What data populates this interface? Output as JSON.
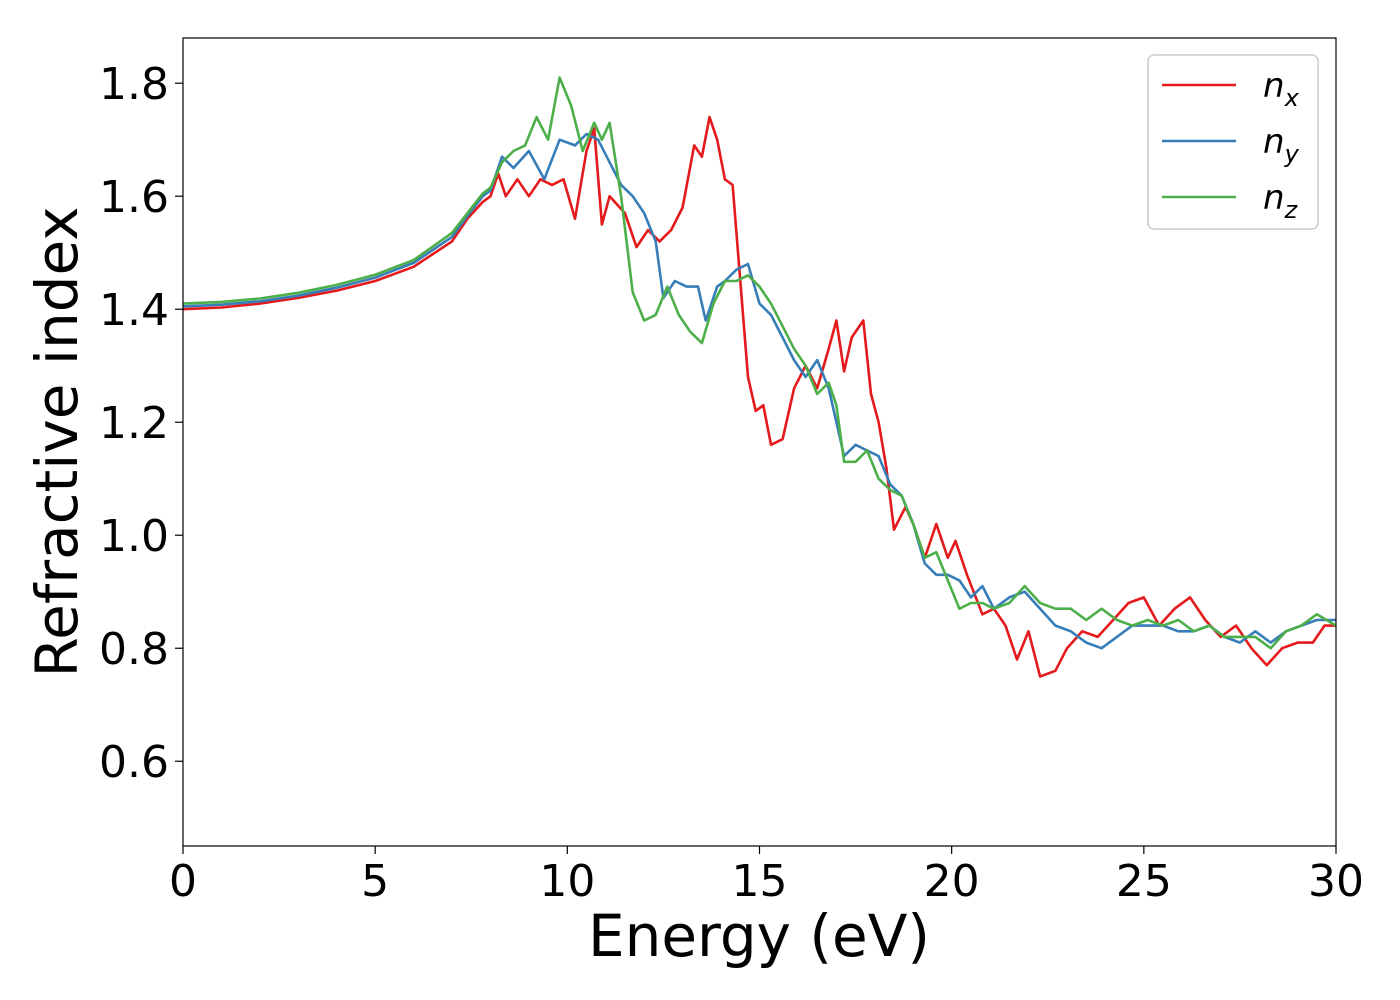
{
  "chart_data": {
    "type": "line",
    "title": "",
    "xlabel": "Energy (eV)",
    "ylabel": "Refractive index",
    "xlim": [
      0,
      30
    ],
    "ylim": [
      0.45,
      1.88
    ],
    "xticks": [
      0,
      5,
      10,
      15,
      20,
      25,
      30
    ],
    "xtick_labels": [
      "0",
      "5",
      "10",
      "15",
      "20",
      "25",
      "30"
    ],
    "yticks": [
      0.6,
      0.8,
      1.0,
      1.2,
      1.4,
      1.6,
      1.8
    ],
    "ytick_labels": [
      "0.6",
      "0.8",
      "1.0",
      "1.2",
      "1.4",
      "1.6",
      "1.8"
    ],
    "grid": false,
    "legend_position": "top-right",
    "series": [
      {
        "name": "n",
        "subscript": "x",
        "color": "#e41a1c",
        "points": [
          [
            0,
            1.4
          ],
          [
            1,
            1.403
          ],
          [
            2,
            1.41
          ],
          [
            3,
            1.42
          ],
          [
            4,
            1.433
          ],
          [
            5,
            1.45
          ],
          [
            6,
            1.475
          ],
          [
            7,
            1.52
          ],
          [
            7.4,
            1.56
          ],
          [
            7.8,
            1.59
          ],
          [
            8.0,
            1.6
          ],
          [
            8.2,
            1.64
          ],
          [
            8.4,
            1.6
          ],
          [
            8.7,
            1.63
          ],
          [
            9.0,
            1.6
          ],
          [
            9.3,
            1.63
          ],
          [
            9.6,
            1.62
          ],
          [
            9.9,
            1.63
          ],
          [
            10.2,
            1.56
          ],
          [
            10.5,
            1.68
          ],
          [
            10.7,
            1.72
          ],
          [
            10.9,
            1.55
          ],
          [
            11.1,
            1.6
          ],
          [
            11.5,
            1.57
          ],
          [
            11.8,
            1.51
          ],
          [
            12.1,
            1.54
          ],
          [
            12.4,
            1.52
          ],
          [
            12.7,
            1.54
          ],
          [
            13.0,
            1.58
          ],
          [
            13.3,
            1.69
          ],
          [
            13.5,
            1.67
          ],
          [
            13.7,
            1.74
          ],
          [
            13.9,
            1.7
          ],
          [
            14.1,
            1.63
          ],
          [
            14.3,
            1.62
          ],
          [
            14.5,
            1.45
          ],
          [
            14.7,
            1.28
          ],
          [
            14.9,
            1.22
          ],
          [
            15.1,
            1.23
          ],
          [
            15.3,
            1.16
          ],
          [
            15.6,
            1.17
          ],
          [
            15.9,
            1.26
          ],
          [
            16.2,
            1.3
          ],
          [
            16.5,
            1.26
          ],
          [
            16.8,
            1.33
          ],
          [
            17.0,
            1.38
          ],
          [
            17.2,
            1.29
          ],
          [
            17.4,
            1.35
          ],
          [
            17.7,
            1.38
          ],
          [
            17.9,
            1.25
          ],
          [
            18.1,
            1.2
          ],
          [
            18.3,
            1.12
          ],
          [
            18.5,
            1.01
          ],
          [
            18.8,
            1.05
          ],
          [
            19.0,
            1.02
          ],
          [
            19.3,
            0.96
          ],
          [
            19.6,
            1.02
          ],
          [
            19.9,
            0.96
          ],
          [
            20.1,
            0.99
          ],
          [
            20.4,
            0.93
          ],
          [
            20.8,
            0.86
          ],
          [
            21.1,
            0.87
          ],
          [
            21.4,
            0.84
          ],
          [
            21.7,
            0.78
          ],
          [
            22.0,
            0.83
          ],
          [
            22.3,
            0.75
          ],
          [
            22.7,
            0.76
          ],
          [
            23.0,
            0.8
          ],
          [
            23.4,
            0.83
          ],
          [
            23.8,
            0.82
          ],
          [
            24.2,
            0.85
          ],
          [
            24.6,
            0.88
          ],
          [
            25.0,
            0.89
          ],
          [
            25.4,
            0.84
          ],
          [
            25.8,
            0.87
          ],
          [
            26.2,
            0.89
          ],
          [
            26.6,
            0.85
          ],
          [
            27.0,
            0.82
          ],
          [
            27.4,
            0.84
          ],
          [
            27.8,
            0.8
          ],
          [
            28.2,
            0.77
          ],
          [
            28.6,
            0.8
          ],
          [
            29.0,
            0.81
          ],
          [
            29.4,
            0.81
          ],
          [
            29.7,
            0.84
          ],
          [
            30.0,
            0.84
          ]
        ]
      },
      {
        "name": "n",
        "subscript": "y",
        "color": "#377eb8",
        "points": [
          [
            0,
            1.405
          ],
          [
            1,
            1.408
          ],
          [
            2,
            1.414
          ],
          [
            3,
            1.424
          ],
          [
            4,
            1.438
          ],
          [
            5,
            1.456
          ],
          [
            6,
            1.482
          ],
          [
            7,
            1.528
          ],
          [
            7.4,
            1.565
          ],
          [
            7.8,
            1.6
          ],
          [
            8.0,
            1.61
          ],
          [
            8.3,
            1.67
          ],
          [
            8.6,
            1.65
          ],
          [
            9.0,
            1.68
          ],
          [
            9.4,
            1.63
          ],
          [
            9.8,
            1.7
          ],
          [
            10.2,
            1.69
          ],
          [
            10.5,
            1.71
          ],
          [
            10.8,
            1.7
          ],
          [
            11.1,
            1.66
          ],
          [
            11.4,
            1.62
          ],
          [
            11.7,
            1.6
          ],
          [
            12.0,
            1.57
          ],
          [
            12.3,
            1.52
          ],
          [
            12.5,
            1.42
          ],
          [
            12.8,
            1.45
          ],
          [
            13.1,
            1.44
          ],
          [
            13.4,
            1.44
          ],
          [
            13.6,
            1.38
          ],
          [
            13.9,
            1.44
          ],
          [
            14.1,
            1.45
          ],
          [
            14.4,
            1.47
          ],
          [
            14.7,
            1.48
          ],
          [
            15.0,
            1.41
          ],
          [
            15.3,
            1.39
          ],
          [
            15.6,
            1.35
          ],
          [
            15.9,
            1.31
          ],
          [
            16.2,
            1.28
          ],
          [
            16.5,
            1.31
          ],
          [
            16.8,
            1.26
          ],
          [
            17.0,
            1.2
          ],
          [
            17.2,
            1.14
          ],
          [
            17.5,
            1.16
          ],
          [
            17.8,
            1.15
          ],
          [
            18.1,
            1.14
          ],
          [
            18.4,
            1.09
          ],
          [
            18.7,
            1.07
          ],
          [
            19.0,
            1.02
          ],
          [
            19.3,
            0.95
          ],
          [
            19.6,
            0.93
          ],
          [
            19.9,
            0.93
          ],
          [
            20.2,
            0.92
          ],
          [
            20.5,
            0.89
          ],
          [
            20.8,
            0.91
          ],
          [
            21.1,
            0.87
          ],
          [
            21.5,
            0.89
          ],
          [
            21.9,
            0.9
          ],
          [
            22.3,
            0.87
          ],
          [
            22.7,
            0.84
          ],
          [
            23.1,
            0.83
          ],
          [
            23.5,
            0.81
          ],
          [
            23.9,
            0.8
          ],
          [
            24.3,
            0.82
          ],
          [
            24.7,
            0.84
          ],
          [
            25.1,
            0.84
          ],
          [
            25.5,
            0.84
          ],
          [
            25.9,
            0.83
          ],
          [
            26.3,
            0.83
          ],
          [
            26.7,
            0.84
          ],
          [
            27.1,
            0.82
          ],
          [
            27.5,
            0.81
          ],
          [
            27.9,
            0.83
          ],
          [
            28.3,
            0.81
          ],
          [
            28.7,
            0.83
          ],
          [
            29.1,
            0.84
          ],
          [
            29.5,
            0.85
          ],
          [
            30.0,
            0.85
          ]
        ]
      },
      {
        "name": "n",
        "subscript": "z",
        "color": "#4daf4a",
        "points": [
          [
            0,
            1.41
          ],
          [
            1,
            1.413
          ],
          [
            2,
            1.419
          ],
          [
            3,
            1.429
          ],
          [
            4,
            1.443
          ],
          [
            5,
            1.461
          ],
          [
            6,
            1.487
          ],
          [
            7,
            1.535
          ],
          [
            7.4,
            1.57
          ],
          [
            7.8,
            1.605
          ],
          [
            8.0,
            1.615
          ],
          [
            8.3,
            1.66
          ],
          [
            8.6,
            1.68
          ],
          [
            8.9,
            1.69
          ],
          [
            9.2,
            1.74
          ],
          [
            9.5,
            1.7
          ],
          [
            9.8,
            1.81
          ],
          [
            10.1,
            1.76
          ],
          [
            10.4,
            1.68
          ],
          [
            10.7,
            1.73
          ],
          [
            10.9,
            1.7
          ],
          [
            11.1,
            1.73
          ],
          [
            11.4,
            1.6
          ],
          [
            11.7,
            1.43
          ],
          [
            12.0,
            1.38
          ],
          [
            12.3,
            1.39
          ],
          [
            12.6,
            1.44
          ],
          [
            12.9,
            1.39
          ],
          [
            13.2,
            1.36
          ],
          [
            13.5,
            1.34
          ],
          [
            13.8,
            1.41
          ],
          [
            14.1,
            1.45
          ],
          [
            14.4,
            1.45
          ],
          [
            14.7,
            1.46
          ],
          [
            15.0,
            1.44
          ],
          [
            15.3,
            1.41
          ],
          [
            15.6,
            1.37
          ],
          [
            15.9,
            1.33
          ],
          [
            16.2,
            1.3
          ],
          [
            16.5,
            1.25
          ],
          [
            16.8,
            1.27
          ],
          [
            17.0,
            1.23
          ],
          [
            17.2,
            1.13
          ],
          [
            17.5,
            1.13
          ],
          [
            17.8,
            1.15
          ],
          [
            18.1,
            1.1
          ],
          [
            18.4,
            1.08
          ],
          [
            18.7,
            1.07
          ],
          [
            19.0,
            1.02
          ],
          [
            19.3,
            0.96
          ],
          [
            19.6,
            0.97
          ],
          [
            19.9,
            0.92
          ],
          [
            20.2,
            0.87
          ],
          [
            20.5,
            0.88
          ],
          [
            20.8,
            0.88
          ],
          [
            21.1,
            0.87
          ],
          [
            21.5,
            0.88
          ],
          [
            21.9,
            0.91
          ],
          [
            22.3,
            0.88
          ],
          [
            22.7,
            0.87
          ],
          [
            23.1,
            0.87
          ],
          [
            23.5,
            0.85
          ],
          [
            23.9,
            0.87
          ],
          [
            24.3,
            0.85
          ],
          [
            24.7,
            0.84
          ],
          [
            25.1,
            0.85
          ],
          [
            25.5,
            0.84
          ],
          [
            25.9,
            0.85
          ],
          [
            26.3,
            0.83
          ],
          [
            26.7,
            0.84
          ],
          [
            27.1,
            0.82
          ],
          [
            27.5,
            0.82
          ],
          [
            27.9,
            0.82
          ],
          [
            28.3,
            0.8
          ],
          [
            28.7,
            0.83
          ],
          [
            29.1,
            0.84
          ],
          [
            29.5,
            0.86
          ],
          [
            30.0,
            0.84
          ]
        ]
      }
    ]
  }
}
